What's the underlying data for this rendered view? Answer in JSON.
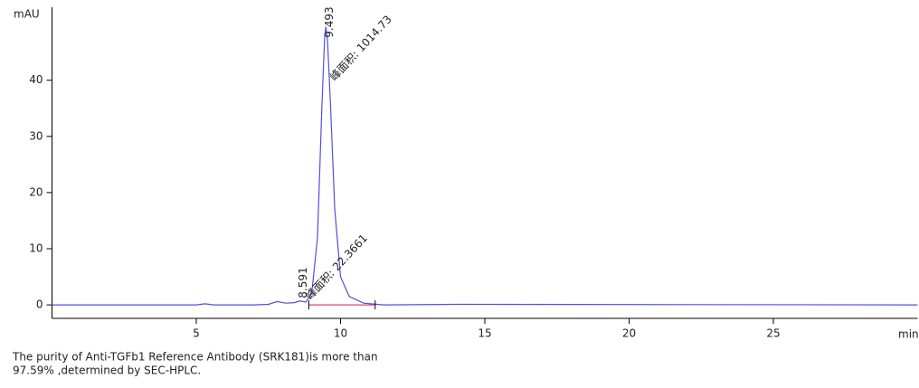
{
  "chart_data": {
    "type": "line",
    "y_label": "mAU",
    "x_label": "min",
    "x": [
      0,
      5,
      5.3,
      5.6,
      7,
      7.5,
      7.8,
      8.1,
      8.4,
      8.591,
      8.8,
      9.0,
      9.2,
      9.35,
      9.45,
      9.493,
      9.55,
      9.65,
      9.8,
      10.0,
      10.3,
      10.8,
      11.5,
      14,
      30
    ],
    "series": [
      {
        "color": "#5050e0",
        "values": [
          0,
          0,
          0.2,
          0,
          0,
          0.1,
          0.6,
          0.3,
          0.4,
          0.7,
          0.5,
          2,
          12,
          35,
          48,
          49.5,
          47,
          36,
          17,
          5,
          1.5,
          0.3,
          0,
          0.1,
          0
        ]
      }
    ],
    "xlim": [
      0,
      30
    ],
    "ylim": [
      -2.4,
      53
    ],
    "xticks": [
      5,
      10,
      15,
      20,
      25
    ],
    "yticks": [
      0,
      10,
      20,
      30,
      40
    ],
    "grid": false,
    "integration_baseline": {
      "start": 8.9,
      "end": 11.2,
      "color": "#e0407a"
    },
    "peaks": [
      {
        "rt": 9.493,
        "height": 49.5,
        "area_label": "峰面积: 1014.73"
      },
      {
        "rt": 8.591,
        "height": 0.7,
        "area_label": "峰面积: 22.3661"
      }
    ]
  },
  "caption": [
    "The purity of Anti-TGFb1 Reference Antibody (SRK181)is more than",
    "97.59% ,determined by SEC-HPLC."
  ]
}
